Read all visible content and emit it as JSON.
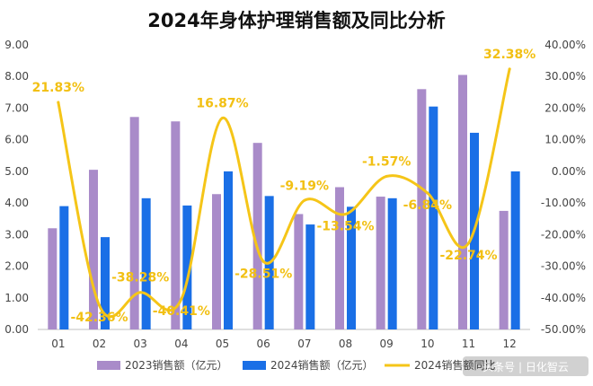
{
  "chart_data": {
    "type": "bar",
    "title": "2024年身体护理销售额及同比分析",
    "categories": [
      "01",
      "02",
      "03",
      "04",
      "05",
      "06",
      "07",
      "08",
      "09",
      "10",
      "11",
      "12"
    ],
    "series": [
      {
        "name": "2023销售额（亿元）",
        "type": "bar",
        "axis": "left",
        "color": "#a98bc9",
        "values": [
          3.2,
          5.05,
          6.72,
          6.58,
          4.28,
          5.9,
          3.65,
          4.5,
          4.2,
          7.6,
          8.05,
          3.75
        ]
      },
      {
        "name": "2024销售额（亿元）",
        "type": "bar",
        "axis": "left",
        "color": "#1a6fe6",
        "values": [
          3.9,
          2.92,
          4.15,
          3.92,
          5.0,
          4.22,
          3.32,
          3.88,
          4.15,
          7.05,
          6.22,
          5.0
        ]
      },
      {
        "name": "2024销售额同比",
        "type": "line",
        "axis": "right",
        "color": "#f5c518",
        "values": [
          21.83,
          -42.36,
          -38.28,
          -40.41,
          16.87,
          -28.51,
          -9.19,
          -13.54,
          -1.57,
          -6.84,
          -22.74,
          32.38
        ],
        "labels": [
          "21.83%",
          "-42.36%",
          "-38.28%",
          "-40.41%",
          "16.87%",
          "-28.51%",
          "-9.19%",
          "-13.54%",
          "-1.57%",
          "-6.84%",
          "-22.74%",
          "32.38%"
        ]
      }
    ],
    "y_left": {
      "ylim": [
        0,
        9
      ],
      "ticks": [
        "0.00",
        "1.00",
        "2.00",
        "3.00",
        "4.00",
        "5.00",
        "6.00",
        "7.00",
        "8.00",
        "9.00"
      ]
    },
    "y_right": {
      "ylim": [
        -50,
        40
      ],
      "ticks": [
        "-50.00%",
        "-40.00%",
        "-30.00%",
        "-20.00%",
        "-10.00%",
        "0.00%",
        "10.00%",
        "20.00%",
        "30.00%",
        "40.00%"
      ]
    },
    "grid": false,
    "legend_position": "bottom"
  },
  "watermark": "头条号 | 日化智云"
}
